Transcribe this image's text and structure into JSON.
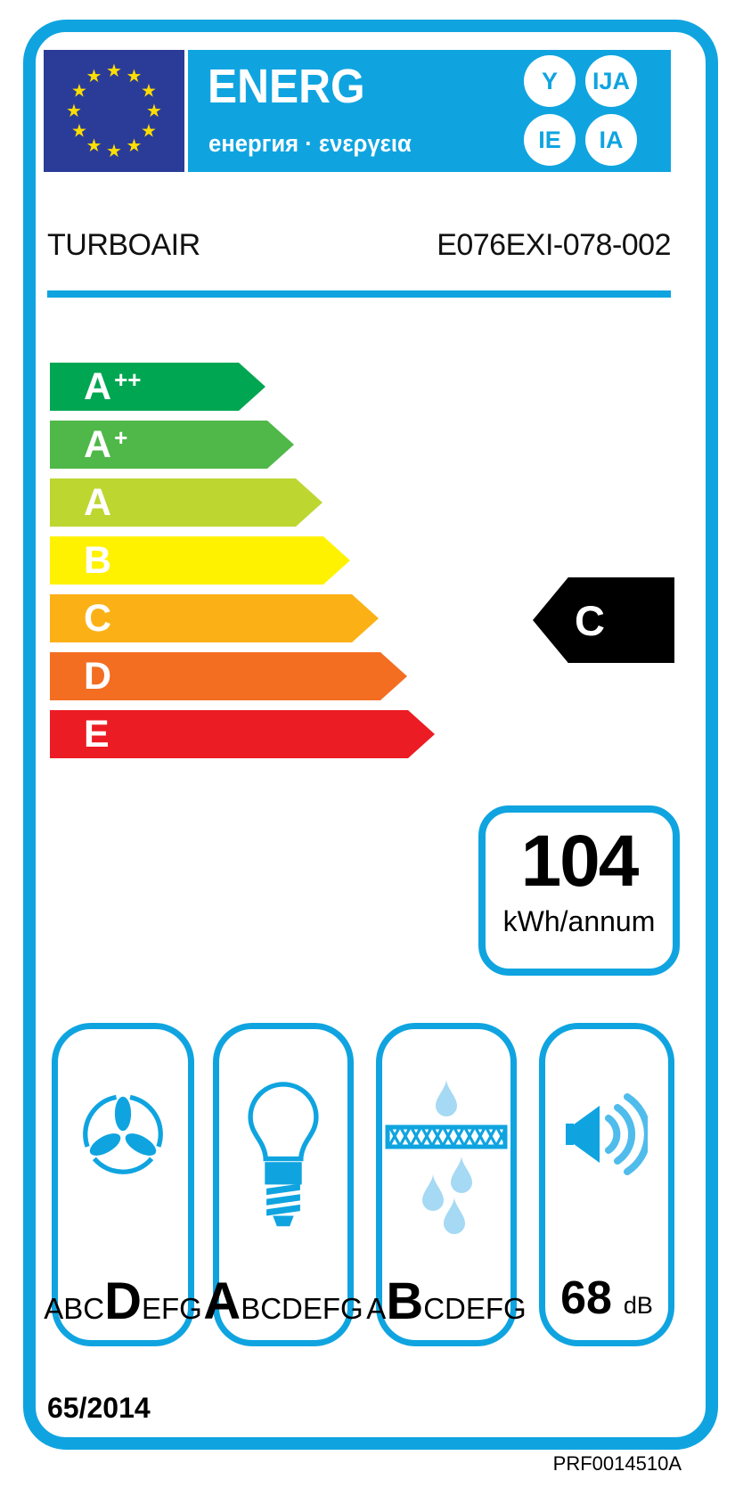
{
  "header": {
    "logo_main": "ENERG",
    "logo_sub": "енергия · ενεργεια",
    "badges": [
      "Y",
      "IJA",
      "IE",
      "IA"
    ]
  },
  "product": {
    "brand": "TURBOAIR",
    "model": "E076EXI-078-002"
  },
  "rating": {
    "selected": "C",
    "classes": [
      {
        "letter": "A",
        "sup": "++",
        "color": "#00A651"
      },
      {
        "letter": "A",
        "sup": "+",
        "color": "#4FB848"
      },
      {
        "letter": "A",
        "sup": "",
        "color": "#BED630"
      },
      {
        "letter": "B",
        "sup": "",
        "color": "#FFF200"
      },
      {
        "letter": "C",
        "sup": "",
        "color": "#FBB116"
      },
      {
        "letter": "D",
        "sup": "",
        "color": "#F36E21"
      },
      {
        "letter": "E",
        "sup": "",
        "color": "#EC1C24"
      }
    ]
  },
  "consumption": {
    "value": "104",
    "unit": "kWh/annum"
  },
  "metrics": {
    "fluid_dynamic": {
      "pre": "ABC",
      "grade": "D",
      "post": "EFG"
    },
    "lighting": {
      "pre": "",
      "grade": "A",
      "post": "BCDEFG"
    },
    "grease_filtering": {
      "pre": "A",
      "grade": "B",
      "post": "CDEFG"
    },
    "noise": {
      "value": "68",
      "unit": "dB"
    }
  },
  "footer": {
    "regulation": "65/2014",
    "reference_code": "PRF0014510A"
  },
  "colors": {
    "accent_cyan": "#0FA4E0",
    "eu_flag_blue": "#2B3C98",
    "star_yellow": "#FFDE00",
    "selected_arrow_black": "#000000",
    "droplet_light_blue": "#A5D9F4"
  }
}
